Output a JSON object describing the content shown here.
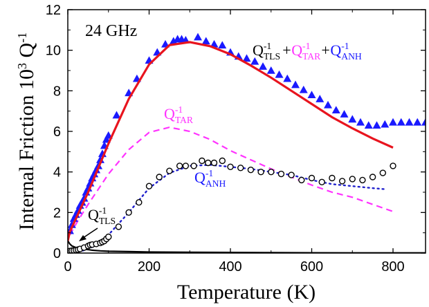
{
  "chart_data": {
    "type": "scatter",
    "annotation_freq": "24 GHz",
    "xlabel": "Temperature (K)",
    "ylabel": "Internal Friction 10",
    "ylabel_sup": "3",
    "ylabel_tail": " Q",
    "ylabel_tail_sup": "-1",
    "xlim": [
      0,
      880
    ],
    "ylim": [
      0,
      12
    ],
    "xticks": [
      0,
      200,
      400,
      600,
      800
    ],
    "yticks": [
      0,
      2,
      4,
      6,
      8,
      10,
      12
    ],
    "grid": false,
    "colors": {
      "blue": "#1a1aff",
      "red": "#e8141e",
      "magenta": "#ff33ff",
      "black": "#000000",
      "dotted_blue": "#1f1fcc"
    },
    "labels": {
      "total": {
        "parts": [
          {
            "base": "Q",
            "sup": "-1",
            "sub": "TLS",
            "color": "#000000"
          },
          {
            "op": "+",
            "color": "#000000"
          },
          {
            "base": "Q",
            "sup": "-1",
            "sub": "TAR",
            "color": "#ff33ff"
          },
          {
            "op": "+",
            "color": "#000000"
          },
          {
            "base": "Q",
            "sup": "-1",
            "sub": "ANH",
            "color": "#1a1aff"
          }
        ]
      },
      "tar": {
        "base": "Q",
        "sup": "-1",
        "sub": "TAR",
        "color": "#ff33ff"
      },
      "anh": {
        "base": "Q",
        "sup": "-1",
        "sub": "ANH",
        "color": "#1a1aff"
      },
      "tls": {
        "base": "Q",
        "sup": "-1",
        "sub": "TLS",
        "color": "#000000"
      }
    },
    "series": [
      {
        "kind": "triangles",
        "x": [
          5,
          10,
          15,
          20,
          25,
          30,
          35,
          40,
          45,
          50,
          55,
          60,
          65,
          70,
          75,
          80,
          85,
          90,
          95,
          100,
          120,
          150,
          170,
          200,
          220,
          240,
          260,
          270,
          280,
          290,
          320,
          340,
          360,
          380,
          400,
          420,
          440,
          460,
          480,
          500,
          520,
          540,
          560,
          580,
          600,
          620,
          640,
          660,
          680,
          700,
          720,
          740,
          760,
          780,
          800,
          820,
          840,
          860,
          880
        ],
        "y": [
          1.1,
          1.4,
          1.7,
          1.9,
          2.1,
          2.35,
          2.5,
          2.7,
          3.0,
          3.2,
          3.45,
          3.7,
          3.9,
          4.1,
          4.3,
          4.6,
          4.9,
          5.3,
          5.6,
          5.8,
          6.8,
          7.9,
          8.6,
          9.5,
          9.9,
          10.3,
          10.45,
          10.55,
          10.55,
          10.5,
          10.65,
          10.45,
          10.3,
          10.25,
          9.9,
          9.7,
          9.6,
          9.45,
          9.2,
          9.0,
          8.8,
          8.6,
          8.3,
          8.05,
          7.8,
          7.6,
          7.3,
          7.05,
          6.85,
          6.6,
          6.45,
          6.3,
          6.3,
          6.35,
          6.45,
          6.45,
          6.45,
          6.45,
          6.45
        ]
      },
      {
        "kind": "circles",
        "x": [
          5,
          10,
          15,
          20,
          25,
          30,
          40,
          50,
          55,
          60,
          70,
          80,
          85,
          90,
          95,
          100,
          125,
          150,
          175,
          200,
          225,
          250,
          275,
          290,
          310,
          330,
          345,
          360,
          380,
          400,
          425,
          450,
          475,
          500,
          525,
          550,
          575,
          600,
          625,
          650,
          675,
          700,
          725,
          750,
          775,
          800
        ],
        "y": [
          0.1,
          0.12,
          0.13,
          0.15,
          0.17,
          0.2,
          0.27,
          0.35,
          0.4,
          0.42,
          0.45,
          0.5,
          0.55,
          0.6,
          0.7,
          0.8,
          1.3,
          2.0,
          2.5,
          3.3,
          3.75,
          4.05,
          4.3,
          4.3,
          4.3,
          4.55,
          4.45,
          4.45,
          4.55,
          4.25,
          4.2,
          4.1,
          4.0,
          4.0,
          3.9,
          3.85,
          3.6,
          3.7,
          3.5,
          3.7,
          3.55,
          3.65,
          3.6,
          3.75,
          3.95,
          4.3
        ]
      },
      {
        "kind": "fit_total",
        "x": [
          0,
          5,
          20,
          50,
          100,
          150,
          200,
          250,
          300,
          350,
          400,
          450,
          500,
          550,
          600,
          650,
          700,
          750,
          800
        ],
        "y": [
          0.6,
          1.05,
          1.7,
          3.0,
          5.4,
          7.6,
          9.3,
          10.25,
          10.4,
          10.2,
          9.8,
          9.25,
          8.65,
          8.0,
          7.35,
          6.7,
          6.15,
          5.65,
          5.2
        ]
      },
      {
        "kind": "fit_tar",
        "x": [
          5,
          25,
          50,
          100,
          150,
          200,
          250,
          300,
          350,
          400,
          450,
          500,
          550,
          600,
          650,
          700,
          750,
          800
        ],
        "y": [
          0.9,
          1.6,
          2.4,
          3.9,
          5.1,
          5.95,
          6.2,
          6.0,
          5.6,
          5.05,
          4.6,
          4.15,
          3.75,
          3.35,
          3.0,
          2.75,
          2.4,
          2.05
        ]
      },
      {
        "kind": "fit_anh",
        "x": [
          25,
          50,
          80,
          100,
          150,
          200,
          250,
          300,
          350,
          400,
          450,
          500,
          550,
          600,
          650,
          700,
          750,
          780
        ],
        "y": [
          0.05,
          0.2,
          0.5,
          0.9,
          2.0,
          3.2,
          3.95,
          4.3,
          4.35,
          4.25,
          4.15,
          4.0,
          3.85,
          3.6,
          3.4,
          3.3,
          3.2,
          3.15
        ]
      },
      {
        "kind": "fit_tls",
        "x": [
          0,
          5,
          10,
          20,
          40,
          60,
          80,
          100,
          150,
          200,
          300,
          400,
          500,
          600,
          700,
          800,
          880
        ],
        "y": [
          0.6,
          0.45,
          0.35,
          0.27,
          0.2,
          0.14,
          0.11,
          0.09,
          0.07,
          0.05,
          0.04,
          0.03,
          0.02,
          0.015,
          0.01,
          0.01,
          0.01
        ]
      }
    ]
  }
}
